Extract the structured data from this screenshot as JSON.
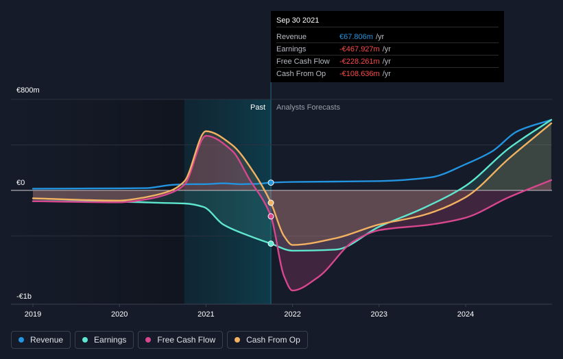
{
  "tooltip": {
    "date": "Sep 30 2021",
    "rows": [
      {
        "label": "Revenue",
        "value": "€67.806m",
        "unit": "/yr",
        "negative": false
      },
      {
        "label": "Earnings",
        "value": "-€467.927m",
        "unit": "/yr",
        "negative": true
      },
      {
        "label": "Free Cash Flow",
        "value": "-€228.261m",
        "unit": "/yr",
        "negative": true
      },
      {
        "label": "Cash From Op",
        "value": "-€108.636m",
        "unit": "/yr",
        "negative": true
      }
    ]
  },
  "legend": [
    {
      "label": "Revenue",
      "color": "#2394df"
    },
    {
      "label": "Earnings",
      "color": "#5ee6cf"
    },
    {
      "label": "Free Cash Flow",
      "color": "#d6478e"
    },
    {
      "label": "Cash From Op",
      "color": "#f2b261"
    }
  ],
  "chart_data": {
    "type": "line",
    "title": "",
    "xlabel": "",
    "ylabel": "",
    "xlim": [
      2018.9,
      2024.99
    ],
    "ylim": [
      -1000,
      800
    ],
    "y_tick_labels": [
      {
        "value": 800,
        "label": "€800m"
      },
      {
        "value": 0,
        "label": "€0"
      },
      {
        "value": -1000,
        "label": "-€1b"
      }
    ],
    "x_tick_labels": [
      "2019",
      "2020",
      "2021",
      "2022",
      "2023",
      "2024"
    ],
    "x_ticks": [
      2019,
      2020,
      2021,
      2022,
      2023,
      2024
    ],
    "past_label": "Past",
    "forecast_label": "Analysts Forecasts",
    "past_start": 2020.75,
    "present": 2021.75,
    "series": [
      {
        "name": "Revenue",
        "color": "#2394df",
        "x": [
          2019.0,
          2020.0,
          2020.3,
          2020.6,
          2020.75,
          2021.0,
          2021.2,
          2021.4,
          2021.6,
          2021.75,
          2022.0,
          2023.0,
          2023.6,
          2024.0,
          2024.3,
          2024.6,
          2024.99
        ],
        "y": [
          15,
          18,
          20,
          48,
          54,
          55,
          62,
          55,
          58,
          68,
          74,
          82,
          115,
          230,
          340,
          520,
          620
        ]
      },
      {
        "name": "Earnings",
        "color": "#5ee6cf",
        "x": [
          2019.0,
          2020.0,
          2020.5,
          2020.75,
          2020.97,
          2021.2,
          2021.5,
          2021.75,
          2022.0,
          2022.5,
          2023.0,
          2023.5,
          2024.0,
          2024.5,
          2024.99
        ],
        "y": [
          -95,
          -100,
          -110,
          -115,
          -145,
          -300,
          -400,
          -468,
          -530,
          -520,
          -320,
          -160,
          40,
          370,
          620
        ]
      },
      {
        "name": "Free Cash Flow",
        "color": "#d6478e",
        "x": [
          2019.0,
          2020.0,
          2020.3,
          2020.6,
          2020.75,
          2021.0,
          2021.3,
          2021.5,
          2021.75,
          2021.9,
          2022.0,
          2022.3,
          2022.7,
          2023.0,
          2023.6,
          2024.0,
          2024.5,
          2024.99
        ],
        "y": [
          -95,
          -105,
          -80,
          -20,
          50,
          480,
          350,
          100,
          -228,
          -750,
          -880,
          -760,
          -450,
          -350,
          -300,
          -240,
          -60,
          90
        ]
      },
      {
        "name": "Cash From Op",
        "color": "#f2b261",
        "x": [
          2019.0,
          2020.0,
          2020.3,
          2020.6,
          2020.75,
          2021.0,
          2021.3,
          2021.55,
          2021.75,
          2021.9,
          2022.0,
          2022.5,
          2023.0,
          2023.5,
          2024.0,
          2024.5,
          2024.99
        ],
        "y": [
          -70,
          -90,
          -60,
          0,
          80,
          520,
          400,
          160,
          -109,
          -400,
          -480,
          -420,
          -300,
          -220,
          -60,
          280,
          590
        ]
      }
    ],
    "markers": [
      {
        "series": "Revenue",
        "x": 2021.75,
        "y": 68
      },
      {
        "series": "Earnings",
        "x": 2021.75,
        "y": -468
      },
      {
        "series": "Free Cash Flow",
        "x": 2021.75,
        "y": -228
      },
      {
        "series": "Cash From Op",
        "x": 2021.75,
        "y": -109
      }
    ]
  }
}
